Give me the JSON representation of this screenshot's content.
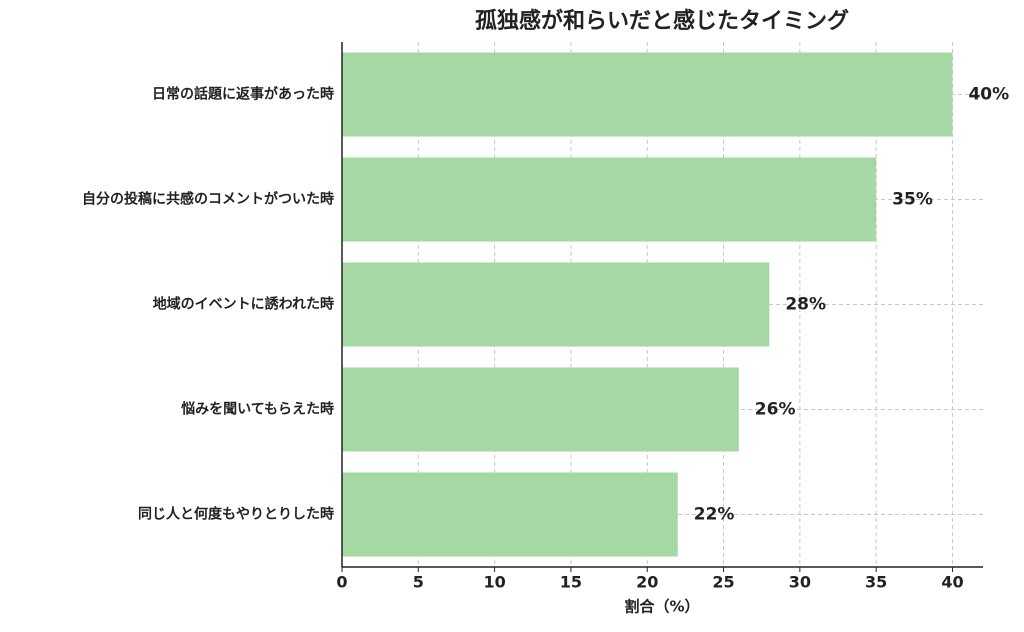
{
  "chart_data": {
    "type": "bar",
    "orientation": "horizontal",
    "title": "孤独感が和らいだと感じたタイミング",
    "xlabel": "割合（%）",
    "categories": [
      "日常の話題に返事があった時",
      "自分の投稿に共感のコメントがついた時",
      "地域のイベントに誘われた時",
      "悩みを聞いてもらえた時",
      "同じ人と何度もやりとりした時"
    ],
    "values": [
      40,
      35,
      28,
      26,
      22
    ],
    "value_labels": [
      "40%",
      "35%",
      "28%",
      "26%",
      "22%"
    ],
    "color": "#a5d8a3",
    "xlim": [
      0,
      42
    ],
    "xticks": [
      0,
      5,
      10,
      15,
      20,
      25,
      30,
      35,
      40
    ],
    "grid": true
  }
}
